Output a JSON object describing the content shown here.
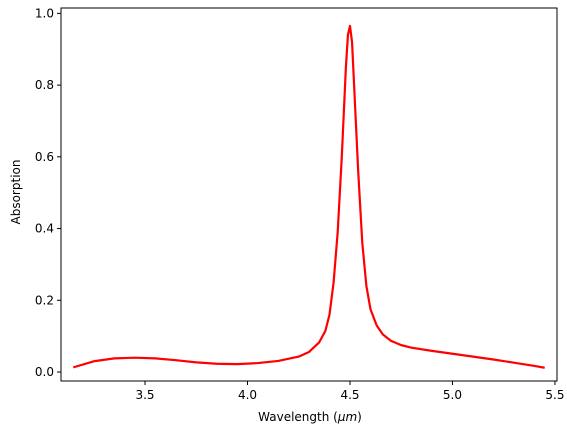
{
  "chart_data": {
    "type": "line",
    "title": "",
    "xlabel_text": "Wavelength (",
    "xlabel_mu": "μm",
    "xlabel_close": ")",
    "ylabel": "Absorption",
    "xlim": [
      3.09,
      5.51
    ],
    "ylim": [
      -0.025,
      1.015
    ],
    "xticks": [
      3.5,
      4.0,
      4.5,
      5.0,
      5.5
    ],
    "xtick_labels": [
      "3.5",
      "4.0",
      "4.5",
      "5.0",
      "5.5"
    ],
    "yticks": [
      0.0,
      0.2,
      0.4,
      0.6,
      0.8,
      1.0
    ],
    "ytick_labels": [
      "0.0",
      "0.2",
      "0.4",
      "0.6",
      "0.8",
      "1.0"
    ],
    "grid": false,
    "series": [
      {
        "color": "#ff0000",
        "x": [
          3.15,
          3.25,
          3.35,
          3.45,
          3.55,
          3.65,
          3.75,
          3.85,
          3.95,
          4.05,
          4.15,
          4.25,
          4.3,
          4.35,
          4.38,
          4.4,
          4.42,
          4.44,
          4.46,
          4.48,
          4.49,
          4.5,
          4.51,
          4.52,
          4.54,
          4.56,
          4.58,
          4.6,
          4.63,
          4.66,
          4.7,
          4.75,
          4.8,
          4.9,
          5.0,
          5.1,
          5.2,
          5.3,
          5.4,
          5.45
        ],
        "y": [
          0.013,
          0.03,
          0.038,
          0.04,
          0.038,
          0.033,
          0.027,
          0.023,
          0.022,
          0.025,
          0.031,
          0.043,
          0.056,
          0.083,
          0.115,
          0.16,
          0.25,
          0.39,
          0.6,
          0.85,
          0.94,
          0.965,
          0.92,
          0.8,
          0.56,
          0.36,
          0.24,
          0.175,
          0.13,
          0.105,
          0.087,
          0.075,
          0.068,
          0.059,
          0.051,
          0.043,
          0.035,
          0.026,
          0.017,
          0.012
        ]
      }
    ]
  }
}
